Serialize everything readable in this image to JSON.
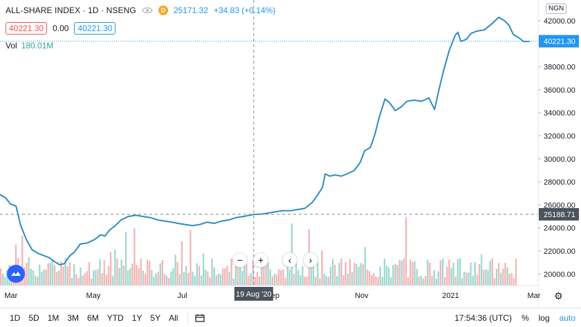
{
  "legend": {
    "title": "ALL-SHARE INDEX · 1D · NSENG",
    "interval_badge": "D",
    "value": "25171.32",
    "change": "+34.83 (+0.14%)",
    "sell": "40221.30",
    "spread": "0.00",
    "buy": "40221.30",
    "vol_label": "Vol",
    "vol_value": "180.01M"
  },
  "currency": "NGN",
  "crosshair_date": "19 Aug '20",
  "price_label_last": "40221.30",
  "price_label_cross": "25188.71",
  "nav": {
    "zoom_out": "−",
    "zoom_in": "+",
    "left": "‹",
    "right": "›"
  },
  "bottom": {
    "ranges": [
      "1D",
      "5D",
      "1M",
      "3M",
      "6M",
      "YTD",
      "1Y",
      "5Y",
      "All"
    ],
    "time": "17:54:36 (UTC)",
    "percent": "%",
    "log": "log",
    "auto": "auto"
  },
  "icons": [
    "eye-icon",
    "calendar-icon",
    "gear-icon",
    "tradingview-logo-icon"
  ],
  "colors": {
    "line": "#2e8bc0",
    "up_volume": "#8fd1c7",
    "down_volume": "#f2a8a8",
    "accent": "#2196f3"
  },
  "chart_data": {
    "type": "line",
    "ylim": [
      19000,
      43800
    ],
    "y_ticks": [
      20000,
      22000,
      24000,
      26000,
      28000,
      30000,
      32000,
      34000,
      36000,
      38000,
      40000,
      42000
    ],
    "y_tick_labels": [
      "20000.00",
      "22000.00",
      "24000.00",
      "26000.00",
      "28000.00",
      "30000.00",
      "32000.00",
      "34000.00",
      "36000.00",
      "38000.00",
      "40000.00",
      "42000.00"
    ],
    "x_tick_labels": [
      "Mar",
      "May",
      "Jul",
      "Sep",
      "Nov",
      "2021",
      "Mar"
    ],
    "x_tick_dates": [
      "2020-03-01",
      "2020-05-01",
      "2020-07-01",
      "2020-09-01",
      "2020-11-01",
      "2021-01-01",
      "2021-03-01"
    ],
    "x_range": [
      "2020-02-27",
      "2021-03-02"
    ],
    "crosshair": {
      "x": "2020-08-19",
      "y": 25188.71
    },
    "last_value": 40221.3,
    "series": [
      {
        "values": [
          [
            "2020-02-27",
            26900
          ],
          [
            "2020-03-02",
            26600
          ],
          [
            "2020-03-05",
            26100
          ],
          [
            "2020-03-09",
            25900
          ],
          [
            "2020-03-12",
            24300
          ],
          [
            "2020-03-16",
            23000
          ],
          [
            "2020-03-20",
            22100
          ],
          [
            "2020-03-24",
            21800
          ],
          [
            "2020-03-28",
            21600
          ],
          [
            "2020-04-01",
            21400
          ],
          [
            "2020-04-04",
            21100
          ],
          [
            "2020-04-08",
            20800
          ],
          [
            "2020-04-11",
            20900
          ],
          [
            "2020-04-15",
            21600
          ],
          [
            "2020-04-18",
            21900
          ],
          [
            "2020-04-22",
            22600
          ],
          [
            "2020-04-27",
            22700
          ],
          [
            "2020-05-02",
            23000
          ],
          [
            "2020-05-06",
            23400
          ],
          [
            "2020-05-09",
            23300
          ],
          [
            "2020-05-12",
            23800
          ],
          [
            "2020-05-16",
            24200
          ],
          [
            "2020-05-20",
            24700
          ],
          [
            "2020-05-25",
            25000
          ],
          [
            "2020-05-30",
            25100
          ],
          [
            "2020-06-04",
            25000
          ],
          [
            "2020-06-09",
            24900
          ],
          [
            "2020-06-14",
            24700
          ],
          [
            "2020-06-19",
            24600
          ],
          [
            "2020-06-24",
            24500
          ],
          [
            "2020-06-28",
            24400
          ],
          [
            "2020-07-03",
            24300
          ],
          [
            "2020-07-08",
            24200
          ],
          [
            "2020-07-13",
            24300
          ],
          [
            "2020-07-18",
            24500
          ],
          [
            "2020-07-23",
            24400
          ],
          [
            "2020-07-28",
            24600
          ],
          [
            "2020-08-02",
            24700
          ],
          [
            "2020-08-07",
            24900
          ],
          [
            "2020-08-12",
            25000
          ],
          [
            "2020-08-19",
            25171
          ],
          [
            "2020-08-24",
            25200
          ],
          [
            "2020-08-29",
            25300
          ],
          [
            "2020-09-03",
            25400
          ],
          [
            "2020-09-08",
            25500
          ],
          [
            "2020-09-13",
            25500
          ],
          [
            "2020-09-18",
            25600
          ],
          [
            "2020-09-23",
            25700
          ],
          [
            "2020-09-28",
            26200
          ],
          [
            "2020-10-02",
            26900
          ],
          [
            "2020-10-05",
            27500
          ],
          [
            "2020-10-07",
            28700
          ],
          [
            "2020-10-10",
            28500
          ],
          [
            "2020-10-14",
            28600
          ],
          [
            "2020-10-18",
            28500
          ],
          [
            "2020-10-22",
            28700
          ],
          [
            "2020-10-27",
            29000
          ],
          [
            "2020-10-31",
            29700
          ],
          [
            "2020-11-03",
            30700
          ],
          [
            "2020-11-07",
            31000
          ],
          [
            "2020-11-10",
            32100
          ],
          [
            "2020-11-13",
            33600
          ],
          [
            "2020-11-17",
            35200
          ],
          [
            "2020-11-20",
            34900
          ],
          [
            "2020-11-24",
            34200
          ],
          [
            "2020-11-28",
            34500
          ],
          [
            "2020-12-02",
            35000
          ],
          [
            "2020-12-07",
            35100
          ],
          [
            "2020-12-12",
            35000
          ],
          [
            "2020-12-17",
            35300
          ],
          [
            "2020-12-21",
            34300
          ],
          [
            "2020-12-24",
            36000
          ],
          [
            "2020-12-27",
            37600
          ],
          [
            "2020-12-31",
            39400
          ],
          [
            "2021-01-04",
            40700
          ],
          [
            "2021-01-06",
            41000
          ],
          [
            "2021-01-08",
            40200
          ],
          [
            "2021-01-12",
            40400
          ],
          [
            "2021-01-15",
            40900
          ],
          [
            "2021-01-19",
            41100
          ],
          [
            "2021-01-24",
            41200
          ],
          [
            "2021-01-29",
            41700
          ],
          [
            "2021-02-03",
            42300
          ],
          [
            "2021-02-07",
            42000
          ],
          [
            "2021-02-10",
            41600
          ],
          [
            "2021-02-13",
            40800
          ],
          [
            "2021-02-17",
            40500
          ],
          [
            "2021-02-20",
            40200
          ],
          [
            "2021-02-24",
            40200
          ]
        ]
      }
    ],
    "volume_bars": 240
  }
}
